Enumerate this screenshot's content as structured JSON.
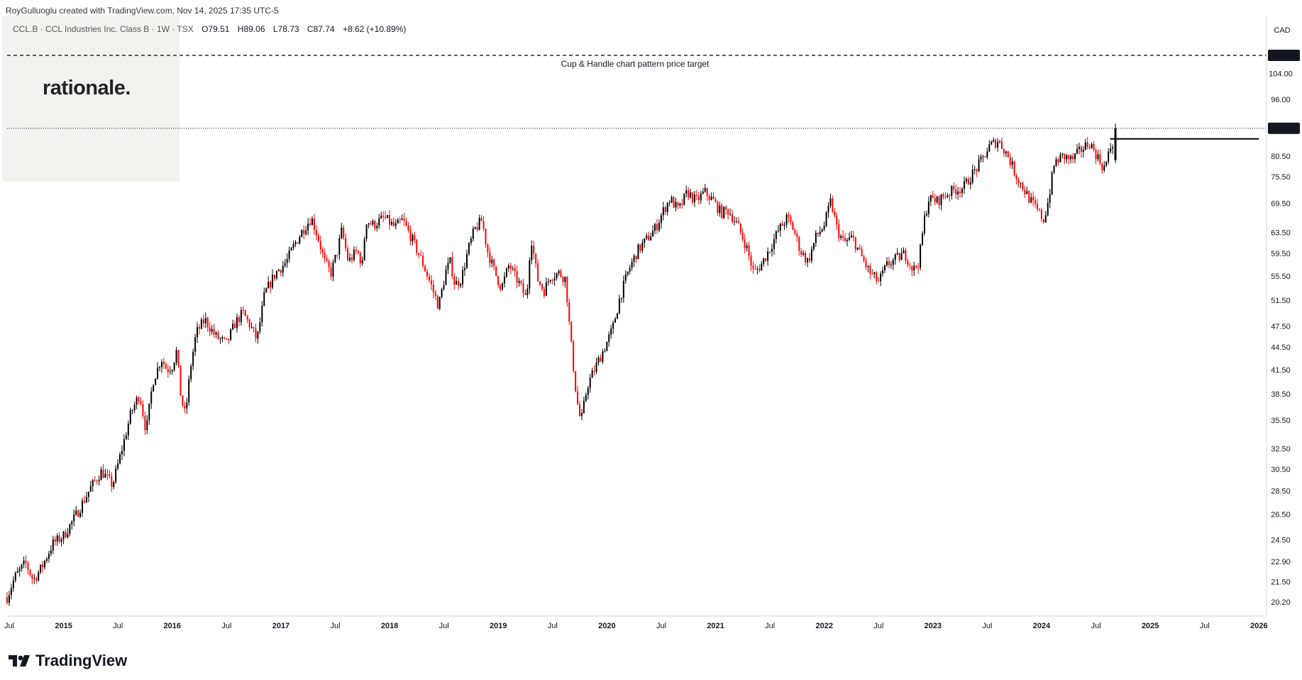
{
  "header": {
    "text": "RoyGulluoglu created with TradingView.com, Nov 14, 2025 17:35 UTC-5"
  },
  "legend": {
    "symbol": "CCL.B · CCL Industries Inc. Class B · 1W · TSX",
    "open": "O79.51",
    "high": "H89.06",
    "low": "L78.73",
    "close": "C87.74",
    "change": "+8.62 (+10.89%)"
  },
  "brand": {
    "text": "rationale."
  },
  "footer": {
    "logo_text": "TradingView"
  },
  "colors": {
    "up": "#000000",
    "down": "#ff0000",
    "ref_line": "#000000",
    "axis": "#131722",
    "grid": "#e0e3eb"
  },
  "chart_data": {
    "type": "candlestick",
    "currency": "CAD",
    "ylim": [
      19.4,
      114
    ],
    "y_scale": "log",
    "y_ticks": [
      104,
      96,
      87.74,
      80.5,
      75.5,
      69.5,
      63.5,
      59.5,
      55.5,
      51.5,
      47.5,
      44.5,
      41.5,
      38.5,
      35.5,
      32.5,
      30.5,
      28.5,
      26.5,
      24.5,
      22.9,
      21.5,
      20.2
    ],
    "y_tick_labels": [
      "104.00",
      "96.00",
      "87.74",
      "80.50",
      "75.50",
      "69.50",
      "63.50",
      "59.50",
      "55.50",
      "51.50",
      "47.50",
      "44.50",
      "41.50",
      "38.50",
      "35.50",
      "32.50",
      "30.50",
      "28.50",
      "26.50",
      "24.50",
      "22.90",
      "21.50",
      "20.20"
    ],
    "x_tick_labels": [
      "Jul",
      "2015",
      "Jul",
      "2016",
      "Jul",
      "2017",
      "Jul",
      "2018",
      "Jul",
      "2019",
      "Jul",
      "2020",
      "Jul",
      "2021",
      "Jul",
      "2022",
      "Jul",
      "2023",
      "Jul",
      "2024",
      "Jul",
      "2025",
      "Jul",
      "2026"
    ],
    "x_tick_years": [
      2014.5,
      2015.0,
      2015.5,
      2016.0,
      2016.5,
      2017.0,
      2017.5,
      2018.0,
      2018.5,
      2019.0,
      2019.5,
      2020.0,
      2020.5,
      2021.0,
      2021.5,
      2022.0,
      2022.5,
      2023.0,
      2023.5,
      2024.0,
      2024.5,
      2025.0,
      2025.5,
      2026.0
    ],
    "xlim": [
      2014.48,
      2026.05
    ],
    "last_price": 87.74,
    "last_price_label": "87.74",
    "annotations": [
      {
        "type": "horizontal_dashed",
        "price": 110.0,
        "label": "Cup & Handle chart pattern price target",
        "price_label": "110.00"
      },
      {
        "type": "horizontal_segment",
        "price": 84.9,
        "x_start": 2024.63,
        "x_end": 2026.0
      }
    ],
    "price_path": [
      [
        2014.48,
        20.5
      ],
      [
        2014.55,
        21.8
      ],
      [
        2014.65,
        22.8
      ],
      [
        2014.72,
        21.6
      ],
      [
        2014.8,
        22.5
      ],
      [
        2014.9,
        24.2
      ],
      [
        2015.0,
        24.8
      ],
      [
        2015.1,
        26.2
      ],
      [
        2015.25,
        28.8
      ],
      [
        2015.35,
        30.3
      ],
      [
        2015.45,
        29.0
      ],
      [
        2015.55,
        33.0
      ],
      [
        2015.62,
        36.3
      ],
      [
        2015.7,
        38.5
      ],
      [
        2015.76,
        34.2
      ],
      [
        2015.82,
        40.0
      ],
      [
        2015.9,
        43.0
      ],
      [
        2015.95,
        41.5
      ],
      [
        2016.0,
        42.0
      ],
      [
        2016.04,
        44.0
      ],
      [
        2016.08,
        38.0
      ],
      [
        2016.12,
        36.0
      ],
      [
        2016.17,
        42.0
      ],
      [
        2016.22,
        46.5
      ],
      [
        2016.3,
        48.5
      ],
      [
        2016.4,
        46.0
      ],
      [
        2016.5,
        45.0
      ],
      [
        2016.58,
        48.0
      ],
      [
        2016.65,
        49.5
      ],
      [
        2016.72,
        47.5
      ],
      [
        2016.78,
        45.5
      ],
      [
        2016.85,
        52.5
      ],
      [
        2016.95,
        56.0
      ],
      [
        2017.05,
        58.0
      ],
      [
        2017.12,
        61.0
      ],
      [
        2017.2,
        64.0
      ],
      [
        2017.28,
        66.5
      ],
      [
        2017.35,
        62.0
      ],
      [
        2017.4,
        58.0
      ],
      [
        2017.46,
        56.0
      ],
      [
        2017.52,
        60.0
      ],
      [
        2017.56,
        64.0
      ],
      [
        2017.62,
        58.0
      ],
      [
        2017.7,
        60.0
      ],
      [
        2017.75,
        57.5
      ],
      [
        2017.78,
        66.0
      ],
      [
        2017.85,
        65.0
      ],
      [
        2017.95,
        66.5
      ],
      [
        2018.05,
        64.5
      ],
      [
        2018.12,
        66.0
      ],
      [
        2018.2,
        62.5
      ],
      [
        2018.3,
        58.0
      ],
      [
        2018.38,
        54.0
      ],
      [
        2018.45,
        50.5
      ],
      [
        2018.52,
        56.5
      ],
      [
        2018.56,
        58.0
      ],
      [
        2018.6,
        54.0
      ],
      [
        2018.66,
        55.0
      ],
      [
        2018.72,
        60.0
      ],
      [
        2018.78,
        64.0
      ],
      [
        2018.85,
        66.0
      ],
      [
        2018.9,
        60.0
      ],
      [
        2018.97,
        56.0
      ],
      [
        2019.03,
        53.5
      ],
      [
        2019.1,
        57.5
      ],
      [
        2019.15,
        55.5
      ],
      [
        2019.2,
        54.0
      ],
      [
        2019.26,
        51.5
      ],
      [
        2019.3,
        63.0
      ],
      [
        2019.36,
        55.0
      ],
      [
        2019.42,
        53.0
      ],
      [
        2019.48,
        55.5
      ],
      [
        2019.56,
        56.0
      ],
      [
        2019.62,
        55.0
      ],
      [
        2019.66,
        46.5
      ],
      [
        2019.72,
        38.0
      ],
      [
        2019.76,
        35.2
      ],
      [
        2019.82,
        39.5
      ],
      [
        2019.9,
        42.0
      ],
      [
        2019.98,
        44.5
      ],
      [
        2020.05,
        47.0
      ],
      [
        2020.12,
        52.0
      ],
      [
        2020.2,
        56.5
      ],
      [
        2020.28,
        60.0
      ],
      [
        2020.36,
        62.0
      ],
      [
        2020.45,
        64.5
      ],
      [
        2020.52,
        68.0
      ],
      [
        2020.58,
        70.5
      ],
      [
        2020.66,
        68.0
      ],
      [
        2020.74,
        72.0
      ],
      [
        2020.82,
        70.0
      ],
      [
        2020.9,
        72.0
      ],
      [
        2020.98,
        70.0
      ],
      [
        2021.05,
        67.5
      ],
      [
        2021.12,
        68.0
      ],
      [
        2021.2,
        65.0
      ],
      [
        2021.28,
        61.0
      ],
      [
        2021.35,
        56.0
      ],
      [
        2021.42,
        57.5
      ],
      [
        2021.5,
        60.5
      ],
      [
        2021.58,
        64.0
      ],
      [
        2021.66,
        66.5
      ],
      [
        2021.72,
        64.0
      ],
      [
        2021.78,
        60.0
      ],
      [
        2021.85,
        58.0
      ],
      [
        2021.92,
        62.5
      ],
      [
        2022.0,
        65.0
      ],
      [
        2022.06,
        70.0
      ],
      [
        2022.12,
        64.0
      ],
      [
        2022.18,
        61.5
      ],
      [
        2022.26,
        62.5
      ],
      [
        2022.34,
        59.0
      ],
      [
        2022.42,
        56.0
      ],
      [
        2022.5,
        54.5
      ],
      [
        2022.58,
        57.5
      ],
      [
        2022.66,
        58.5
      ],
      [
        2022.74,
        59.5
      ],
      [
        2022.82,
        56.5
      ],
      [
        2022.87,
        58.0
      ],
      [
        2022.92,
        66.0
      ],
      [
        2022.96,
        70.5
      ],
      [
        2023.04,
        70.0
      ],
      [
        2023.12,
        71.5
      ],
      [
        2023.2,
        72.5
      ],
      [
        2023.28,
        73.0
      ],
      [
        2023.36,
        76.0
      ],
      [
        2023.44,
        79.0
      ],
      [
        2023.52,
        83.0
      ],
      [
        2023.6,
        84.5
      ],
      [
        2023.66,
        82.0
      ],
      [
        2023.7,
        80.0
      ],
      [
        2023.76,
        76.0
      ],
      [
        2023.84,
        72.5
      ],
      [
        2023.9,
        70.0
      ],
      [
        2023.96,
        68.0
      ],
      [
        2024.02,
        66.0
      ],
      [
        2024.06,
        70.0
      ],
      [
        2024.12,
        79.0
      ],
      [
        2024.2,
        80.5
      ],
      [
        2024.28,
        79.5
      ],
      [
        2024.36,
        82.0
      ],
      [
        2024.44,
        84.0
      ],
      [
        2024.52,
        80.0
      ],
      [
        2024.57,
        77.5
      ],
      [
        2024.6,
        79.0
      ],
      [
        2024.63,
        82.5
      ],
      [
        2024.66,
        84.0
      ]
    ]
  }
}
